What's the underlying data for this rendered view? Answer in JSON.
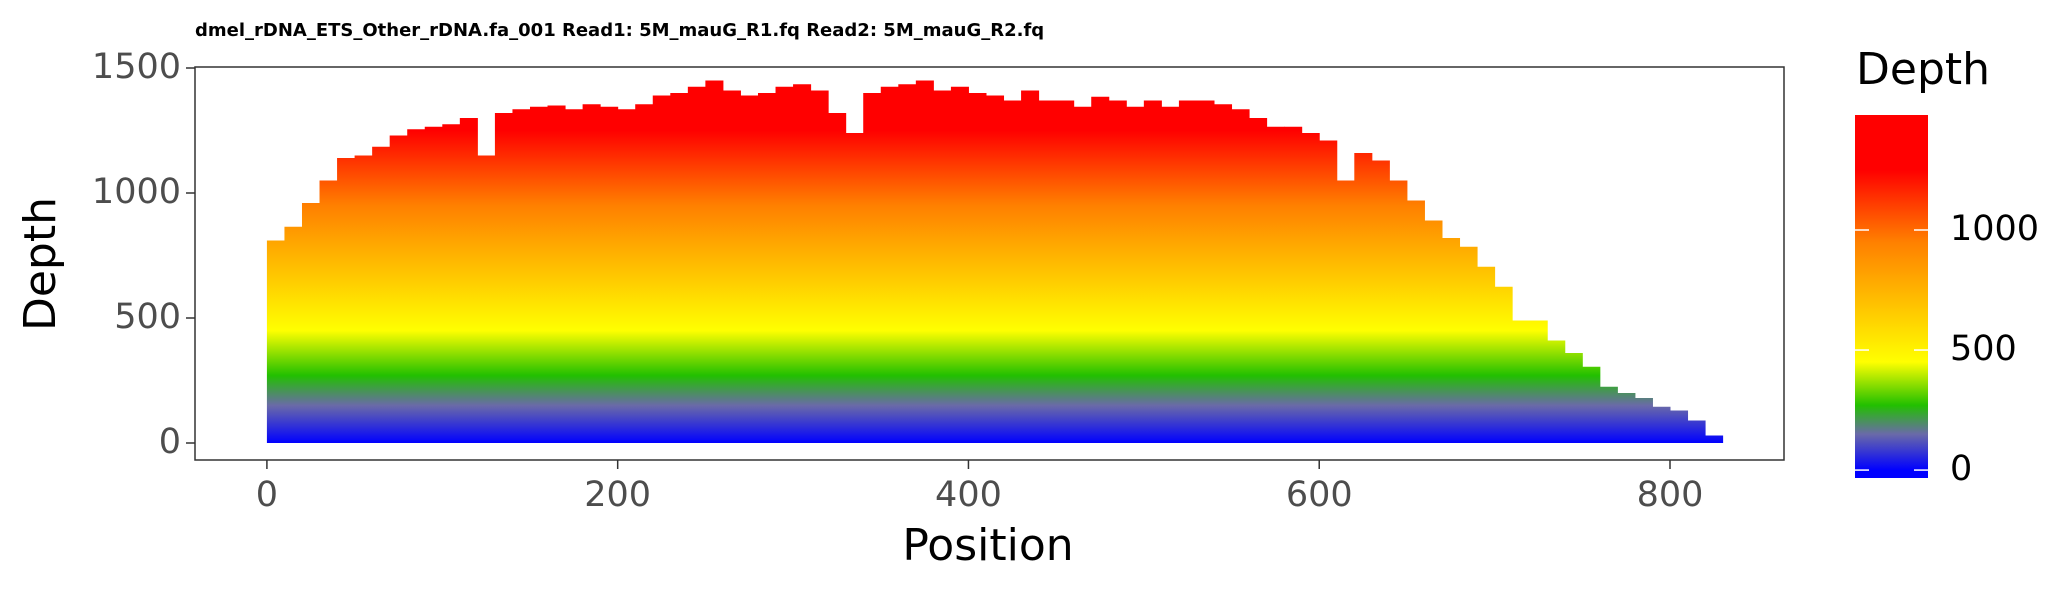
{
  "chart_data": {
    "type": "bar",
    "title": "dmel_rDNA_ETS_Other_rDNA.fa_001 Read1: 5M_mauG_R1.fq Read2: 5M_mauG_R2.fq",
    "x_label": "Position",
    "y_label": "Depth",
    "x": [
      0,
      10,
      20,
      30,
      40,
      50,
      60,
      70,
      80,
      90,
      100,
      110,
      120,
      130,
      140,
      150,
      160,
      170,
      180,
      190,
      200,
      210,
      220,
      230,
      240,
      250,
      260,
      270,
      280,
      290,
      300,
      310,
      320,
      330,
      340,
      350,
      360,
      370,
      380,
      390,
      400,
      410,
      420,
      430,
      440,
      450,
      460,
      470,
      480,
      490,
      500,
      510,
      520,
      530,
      540,
      550,
      560,
      570,
      580,
      590,
      600,
      610,
      620,
      630,
      640,
      650,
      660,
      670,
      680,
      690,
      700,
      710,
      720,
      730,
      740,
      750,
      760,
      770,
      780,
      790,
      800,
      810,
      820
    ],
    "values": [
      810,
      865,
      960,
      1050,
      1140,
      1150,
      1185,
      1230,
      1255,
      1265,
      1275,
      1300,
      1150,
      1320,
      1335,
      1345,
      1350,
      1335,
      1355,
      1345,
      1335,
      1355,
      1390,
      1400,
      1425,
      1450,
      1410,
      1390,
      1400,
      1425,
      1435,
      1410,
      1320,
      1240,
      1400,
      1425,
      1435,
      1450,
      1410,
      1425,
      1400,
      1390,
      1370,
      1410,
      1370,
      1370,
      1345,
      1385,
      1370,
      1345,
      1370,
      1345,
      1370,
      1370,
      1355,
      1335,
      1300,
      1265,
      1265,
      1240,
      1210,
      1050,
      1160,
      1130,
      1050,
      970,
      890,
      820,
      785,
      705,
      625,
      490,
      490,
      410,
      360,
      305,
      225,
      200,
      180,
      145,
      130,
      90,
      30
    ],
    "bar_width": 10,
    "xlim": [
      -41,
      865
    ],
    "xticks": [
      0,
      200,
      400,
      600,
      800
    ],
    "ylim": [
      -68,
      1504
    ],
    "yticks": [
      0,
      500,
      1000,
      1500
    ],
    "colorbar": {
      "title": "Depth",
      "limits": [
        -33,
        1479
      ],
      "ticks": [
        0,
        500,
        1000
      ],
      "stops": [
        {
          "value": 0,
          "color": "#0000ff"
        },
        {
          "value": 150,
          "color": "#6a6aa8"
        },
        {
          "value": 270,
          "color": "#22c000"
        },
        {
          "value": 450,
          "color": "#ffff00"
        },
        {
          "value": 950,
          "color": "#ff8000"
        },
        {
          "value": 1250,
          "color": "#ff0000"
        }
      ]
    }
  }
}
